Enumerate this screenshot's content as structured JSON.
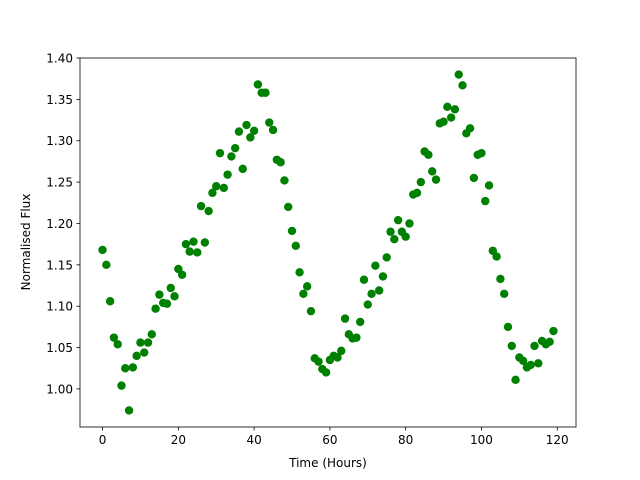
{
  "chart_data": {
    "type": "scatter",
    "xlabel": "Time (Hours)",
    "ylabel": "Normalised Flux",
    "color": "#008000",
    "x": [
      0,
      1,
      2,
      3,
      4,
      5,
      6,
      7,
      8,
      9,
      10,
      11,
      12,
      13,
      14,
      15,
      16,
      17,
      18,
      19,
      20,
      21,
      22,
      23,
      24,
      25,
      26,
      27,
      28,
      29,
      30,
      31,
      32,
      33,
      34,
      35,
      36,
      37,
      38,
      39,
      40,
      41,
      42,
      43,
      44,
      45,
      46,
      47,
      48,
      49,
      50,
      51,
      52,
      53,
      54,
      55,
      56,
      57,
      58,
      59,
      60,
      61,
      62,
      63,
      64,
      65,
      66,
      67,
      68,
      69,
      70,
      71,
      72,
      73,
      74,
      75,
      76,
      77,
      78,
      79,
      80,
      81,
      82,
      83,
      84,
      85,
      86,
      87,
      88,
      89,
      90,
      91,
      92,
      93,
      94,
      95,
      96,
      97,
      98,
      99,
      100,
      101,
      102,
      103,
      104,
      105,
      106,
      107,
      108,
      109,
      110,
      111,
      112,
      113,
      114,
      115,
      116,
      117,
      118,
      119
    ],
    "values": [
      1.168,
      1.15,
      1.106,
      1.062,
      1.054,
      1.004,
      1.025,
      0.974,
      1.026,
      1.04,
      1.056,
      1.044,
      1.056,
      1.066,
      1.097,
      1.114,
      1.104,
      1.103,
      1.122,
      1.112,
      1.145,
      1.138,
      1.175,
      1.166,
      1.178,
      1.165,
      1.221,
      1.177,
      1.215,
      1.237,
      1.245,
      1.285,
      1.243,
      1.259,
      1.281,
      1.291,
      1.311,
      1.266,
      1.319,
      1.304,
      1.312,
      1.368,
      1.358,
      1.358,
      1.322,
      1.313,
      1.277,
      1.274,
      1.252,
      1.22,
      1.191,
      1.173,
      1.141,
      1.115,
      1.124,
      1.094,
      1.037,
      1.033,
      1.024,
      1.02,
      1.035,
      1.04,
      1.038,
      1.046,
      1.085,
      1.066,
      1.061,
      1.062,
      1.081,
      1.132,
      1.102,
      1.115,
      1.149,
      1.119,
      1.136,
      1.159,
      1.19,
      1.181,
      1.204,
      1.19,
      1.184,
      1.2,
      1.235,
      1.237,
      1.25,
      1.287,
      1.283,
      1.263,
      1.253,
      1.321,
      1.323,
      1.341,
      1.328,
      1.338,
      1.38,
      1.367,
      1.309,
      1.315,
      1.255,
      1.283,
      1.285,
      1.227,
      1.246,
      1.167,
      1.16,
      1.133,
      1.115,
      1.075,
      1.052,
      1.011,
      1.038,
      1.034,
      1.026,
      1.029,
      1.052,
      1.031,
      1.058,
      1.054,
      1.057,
      1.07
    ],
    "xlim": [
      -5.95,
      124.95
    ],
    "ylim": [
      0.954,
      1.4
    ],
    "xticks": [
      0,
      20,
      40,
      60,
      80,
      100,
      120
    ],
    "yticks": [
      {
        "value": 1,
        "label": "1.00"
      },
      1.05,
      {
        "value": 1.1,
        "label": "1.10"
      },
      1.15,
      {
        "value": 1.2,
        "label": "1.20"
      },
      1.25,
      {
        "value": 1.3,
        "label": "1.30"
      },
      1.35,
      {
        "value": 1.4,
        "label": "1.40"
      }
    ]
  }
}
